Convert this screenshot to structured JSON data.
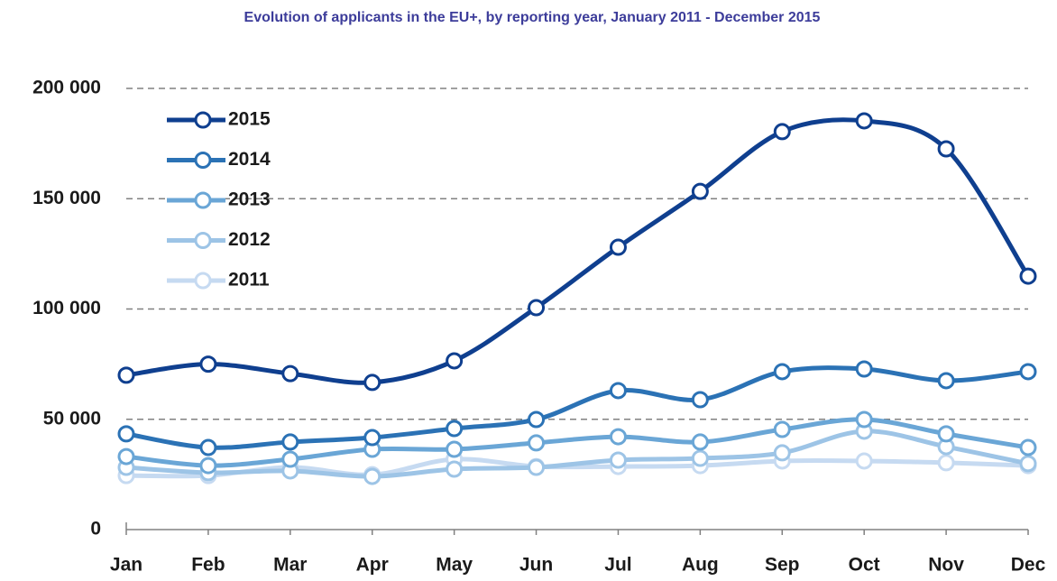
{
  "chart_data": {
    "type": "line",
    "title": "Evolution of applicants in the EU+, by reporting year, January 2011 - December 2015",
    "categories": [
      "Jan",
      "Feb",
      "Mar",
      "Apr",
      "May",
      "Jun",
      "Jul",
      "Aug",
      "Sep",
      "Oct",
      "Nov",
      "Dec"
    ],
    "series": [
      {
        "name": "2015",
        "color": "#0f3f8f",
        "values": [
          70000,
          75000,
          70700,
          66700,
          76500,
          100600,
          128000,
          153300,
          180400,
          185300,
          172600,
          114900
        ]
      },
      {
        "name": "2014",
        "color": "#2b72b5",
        "values": [
          43400,
          37200,
          39700,
          41700,
          45800,
          49900,
          63000,
          58900,
          71600,
          72800,
          67500,
          71600
        ]
      },
      {
        "name": "2013",
        "color": "#6aa6d6",
        "values": [
          33100,
          29000,
          31900,
          36400,
          36400,
          39300,
          42100,
          39700,
          45400,
          49900,
          43400,
          37200
        ]
      },
      {
        "name": "2012",
        "color": "#9dc4e6",
        "values": [
          28200,
          25800,
          26600,
          24100,
          27400,
          28200,
          31500,
          32300,
          34800,
          44600,
          37600,
          29900
        ]
      },
      {
        "name": "2011",
        "color": "#c6daf1",
        "values": [
          24500,
          24500,
          28200,
          24900,
          31900,
          28600,
          28600,
          29000,
          31100,
          31100,
          30300,
          29000
        ]
      }
    ],
    "ylim": [
      0,
      200000
    ],
    "yticks": [
      0,
      {
        "value": 50000,
        "label": "50 000"
      },
      {
        "value": 100000,
        "label": "100 000"
      },
      {
        "value": 150000,
        "label": "150 000"
      },
      {
        "value": 200000,
        "label": "200 000"
      }
    ],
    "grid": true,
    "legend": "top-left"
  }
}
